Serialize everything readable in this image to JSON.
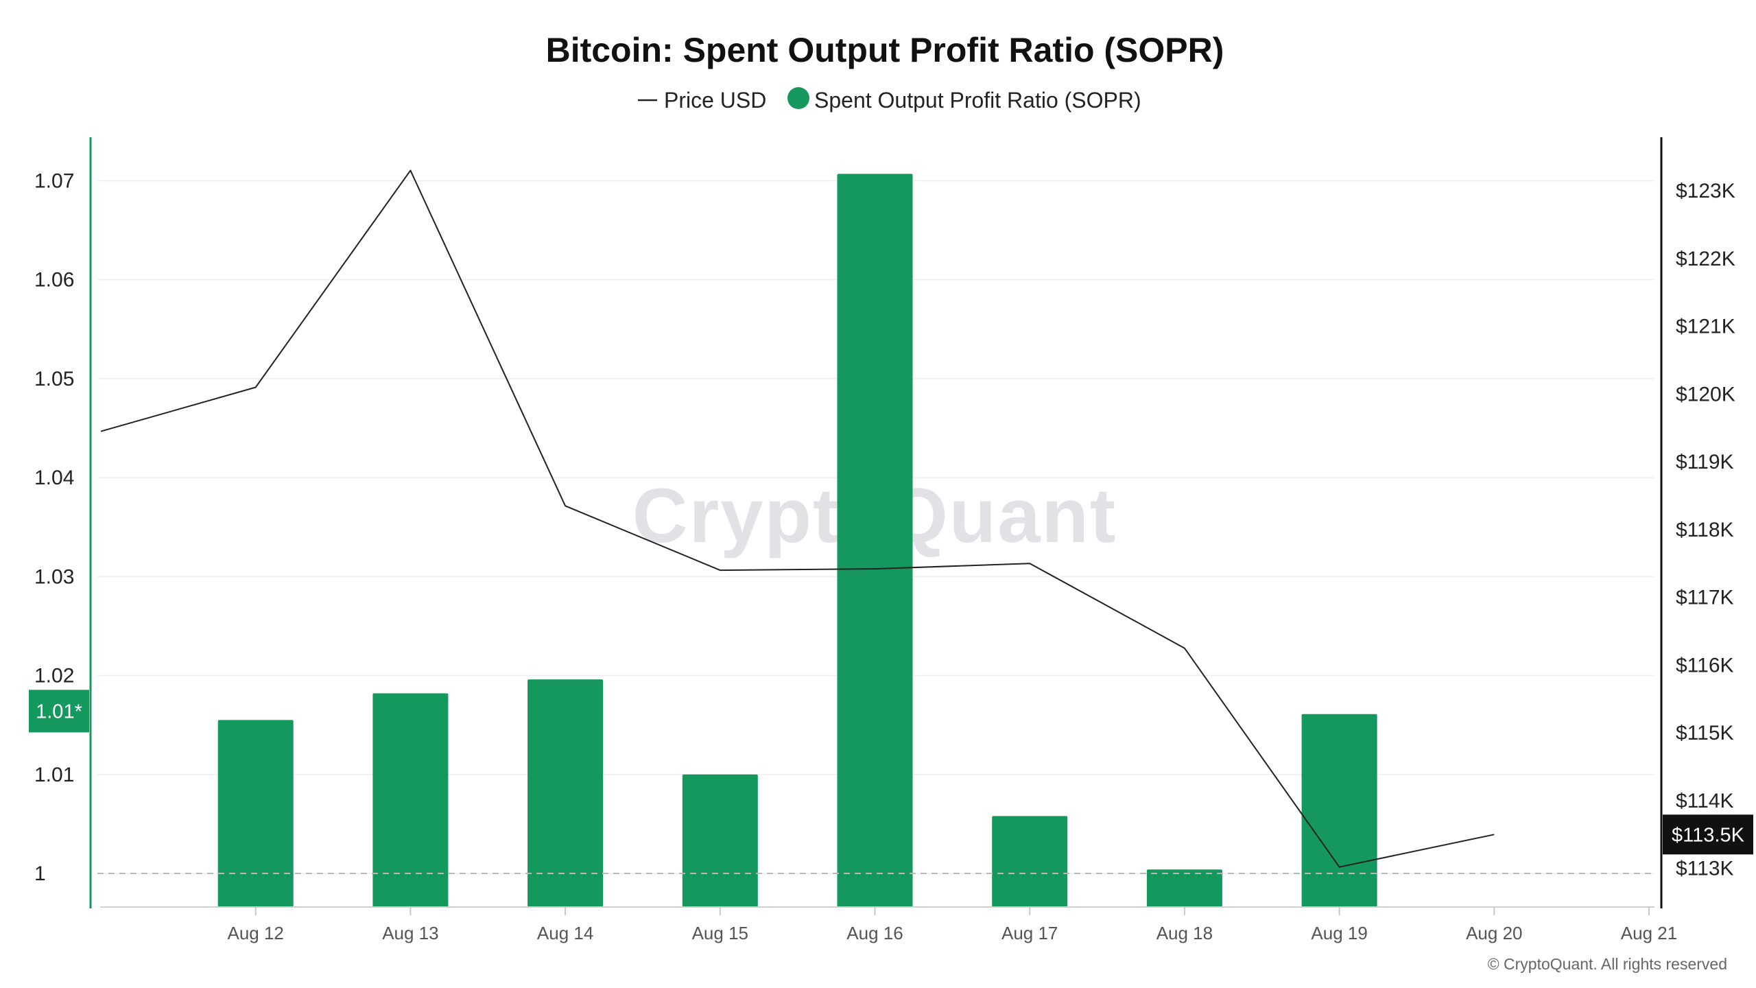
{
  "chart_data": {
    "type": "bar",
    "title": "Bitcoin: Spent Output Profit Ratio (SOPR)",
    "categories": [
      "Aug 12",
      "Aug 13",
      "Aug 14",
      "Aug 15",
      "Aug 16",
      "Aug 17",
      "Aug 18",
      "Aug 19",
      "Aug 20",
      "Aug 21"
    ],
    "series": [
      {
        "name": "Spent Output Profit Ratio (SOPR)",
        "type": "bar",
        "axis": "left",
        "color": "#14985d",
        "values": [
          1.0155,
          1.0182,
          1.0196,
          1.01,
          1.0707,
          1.0058,
          1.0004,
          1.0161,
          null,
          null
        ]
      },
      {
        "name": "Price USD",
        "type": "line",
        "axis": "right",
        "color": "#222222",
        "x": [
          "Aug 11",
          "Aug 12",
          "Aug 13",
          "Aug 14",
          "Aug 15",
          "Aug 16",
          "Aug 17",
          "Aug 18",
          "Aug 19",
          "Aug 20"
        ],
        "values": [
          119450,
          120100,
          123300,
          118350,
          117400,
          117420,
          117500,
          116250,
          113020,
          113500
        ]
      }
    ],
    "left_axis": {
      "ticks": [
        "1.07",
        "1.06",
        "1.05",
        "1.04",
        "1.03",
        "1.02",
        "1.01",
        "1"
      ],
      "tick_values": [
        1.07,
        1.06,
        1.05,
        1.04,
        1.03,
        1.02,
        1.01,
        1.0
      ],
      "ylim": [
        0.9966,
        1.0744
      ],
      "reference_line": 1.0,
      "current_marker": {
        "label": "1.01*",
        "value": 1.0164
      }
    },
    "right_axis": {
      "ticks": [
        "$123K",
        "$122K",
        "$121K",
        "$120K",
        "$119K",
        "$118K",
        "$117K",
        "$116K",
        "$115K",
        "$114K",
        "$113K"
      ],
      "tick_values": [
        123000,
        122000,
        121000,
        120000,
        119000,
        118000,
        117000,
        116000,
        115000,
        114000,
        113000
      ],
      "ylim": [
        112430,
        123790
      ],
      "current_marker": {
        "label": "$113.5K",
        "value": 113500
      }
    },
    "legend": {
      "placement": "top-center",
      "items": [
        {
          "label": "Price USD",
          "symbol": "line",
          "color": "#222222"
        },
        {
          "label": "Spent Output Profit Ratio (SOPR)",
          "symbol": "dot",
          "color": "#14985d"
        }
      ]
    },
    "grid": true,
    "watermark": "CryptoQuant",
    "footer": "© CryptoQuant. All rights reserved"
  }
}
